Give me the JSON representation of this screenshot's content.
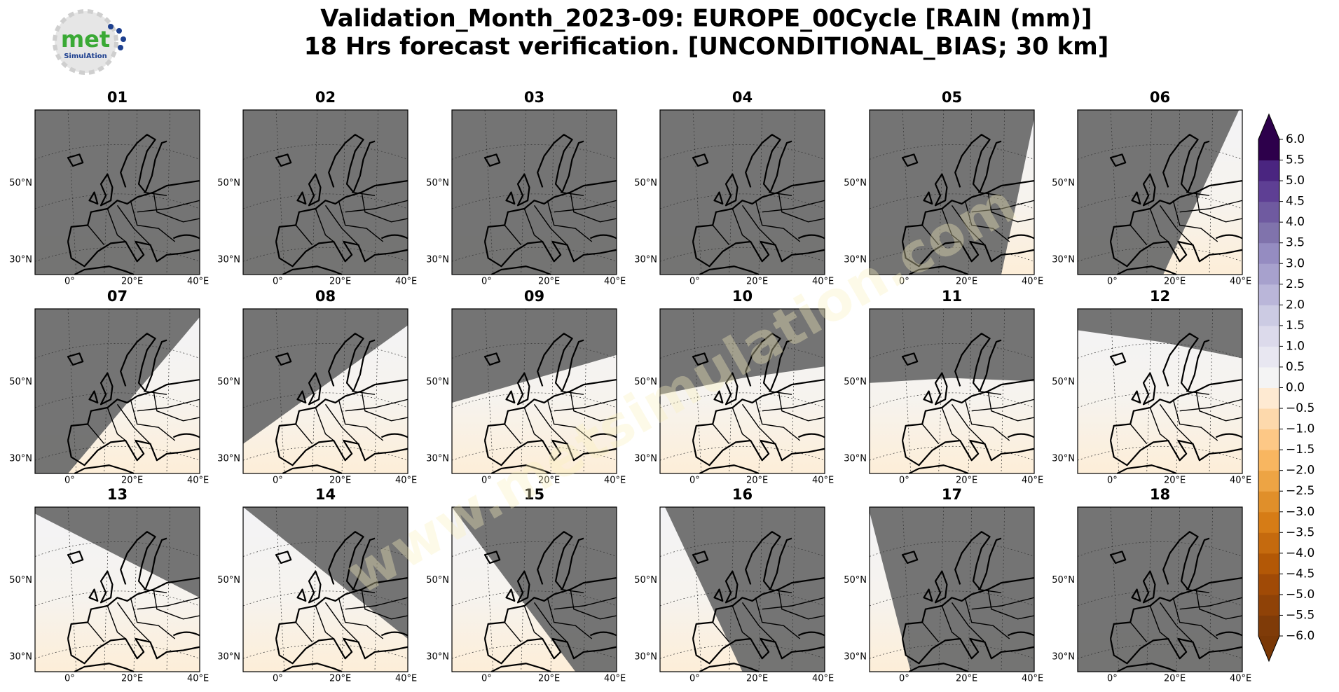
{
  "header": {
    "title_line1": "Validation_Month_2023-09: EUROPE_00Cycle [RAIN (mm)]",
    "title_line2": "18 Hrs forecast verification. [UNCONDITIONAL_BIAS; 30 km]"
  },
  "logo": {
    "name": "met",
    "tagline": "SimulAtion"
  },
  "watermark": "www.metsimulation.com",
  "panels": [
    "01",
    "02",
    "03",
    "04",
    "05",
    "06",
    "07",
    "08",
    "09",
    "10",
    "11",
    "12",
    "13",
    "14",
    "15",
    "16",
    "17",
    "18"
  ],
  "lat_labels": [
    "50°N",
    "30°N"
  ],
  "lon_labels": [
    "0°",
    "20°E",
    "40°E"
  ],
  "colorbar": {
    "lim": [
      -6,
      6
    ],
    "colors": [
      "#7f3b08",
      "#8f4207",
      "#a04a06",
      "#b35806",
      "#c56a0e",
      "#d67c16",
      "#e08f2a",
      "#eda444",
      "#f8b660",
      "#fdc886",
      "#fdd9ac",
      "#feead2",
      "#f4f4f4",
      "#e8e7f1",
      "#dcdaeb",
      "#cccbe3",
      "#bab6d9",
      "#a7a1cd",
      "#958cc1",
      "#8073ac",
      "#6f5aa0",
      "#5e3f94",
      "#4a2580",
      "#2d004b"
    ],
    "under_color": "#7a3806",
    "over_color": "#2d004b",
    "ticks": [
      {
        "value": 6,
        "label": "6.0"
      },
      {
        "value": 5.5,
        "label": "5.5"
      },
      {
        "value": 5,
        "label": "5.0"
      },
      {
        "value": 4.5,
        "label": "4.5"
      },
      {
        "value": 4,
        "label": "4.0"
      },
      {
        "value": 3.5,
        "label": "3.5"
      },
      {
        "value": 3,
        "label": "3.0"
      },
      {
        "value": 2.5,
        "label": "2.5"
      },
      {
        "value": 2,
        "label": "2.0"
      },
      {
        "value": 1.5,
        "label": "1.5"
      },
      {
        "value": 1,
        "label": "1.0"
      },
      {
        "value": 0.5,
        "label": "0.5"
      },
      {
        "value": 0,
        "label": "0.0"
      },
      {
        "value": -0.5,
        "label": "−0.5"
      },
      {
        "value": -1,
        "label": "−1.0"
      },
      {
        "value": -1.5,
        "label": "−1.5"
      },
      {
        "value": -2,
        "label": "−2.0"
      },
      {
        "value": -2.5,
        "label": "−2.5"
      },
      {
        "value": -3,
        "label": "−3.0"
      },
      {
        "value": -3.5,
        "label": "−3.5"
      },
      {
        "value": -4,
        "label": "−4.0"
      },
      {
        "value": -4.5,
        "label": "−4.5"
      },
      {
        "value": -5,
        "label": "−5.0"
      },
      {
        "value": -5.5,
        "label": "−5.5"
      },
      {
        "value": -6,
        "label": "−6.0"
      }
    ]
  }
}
